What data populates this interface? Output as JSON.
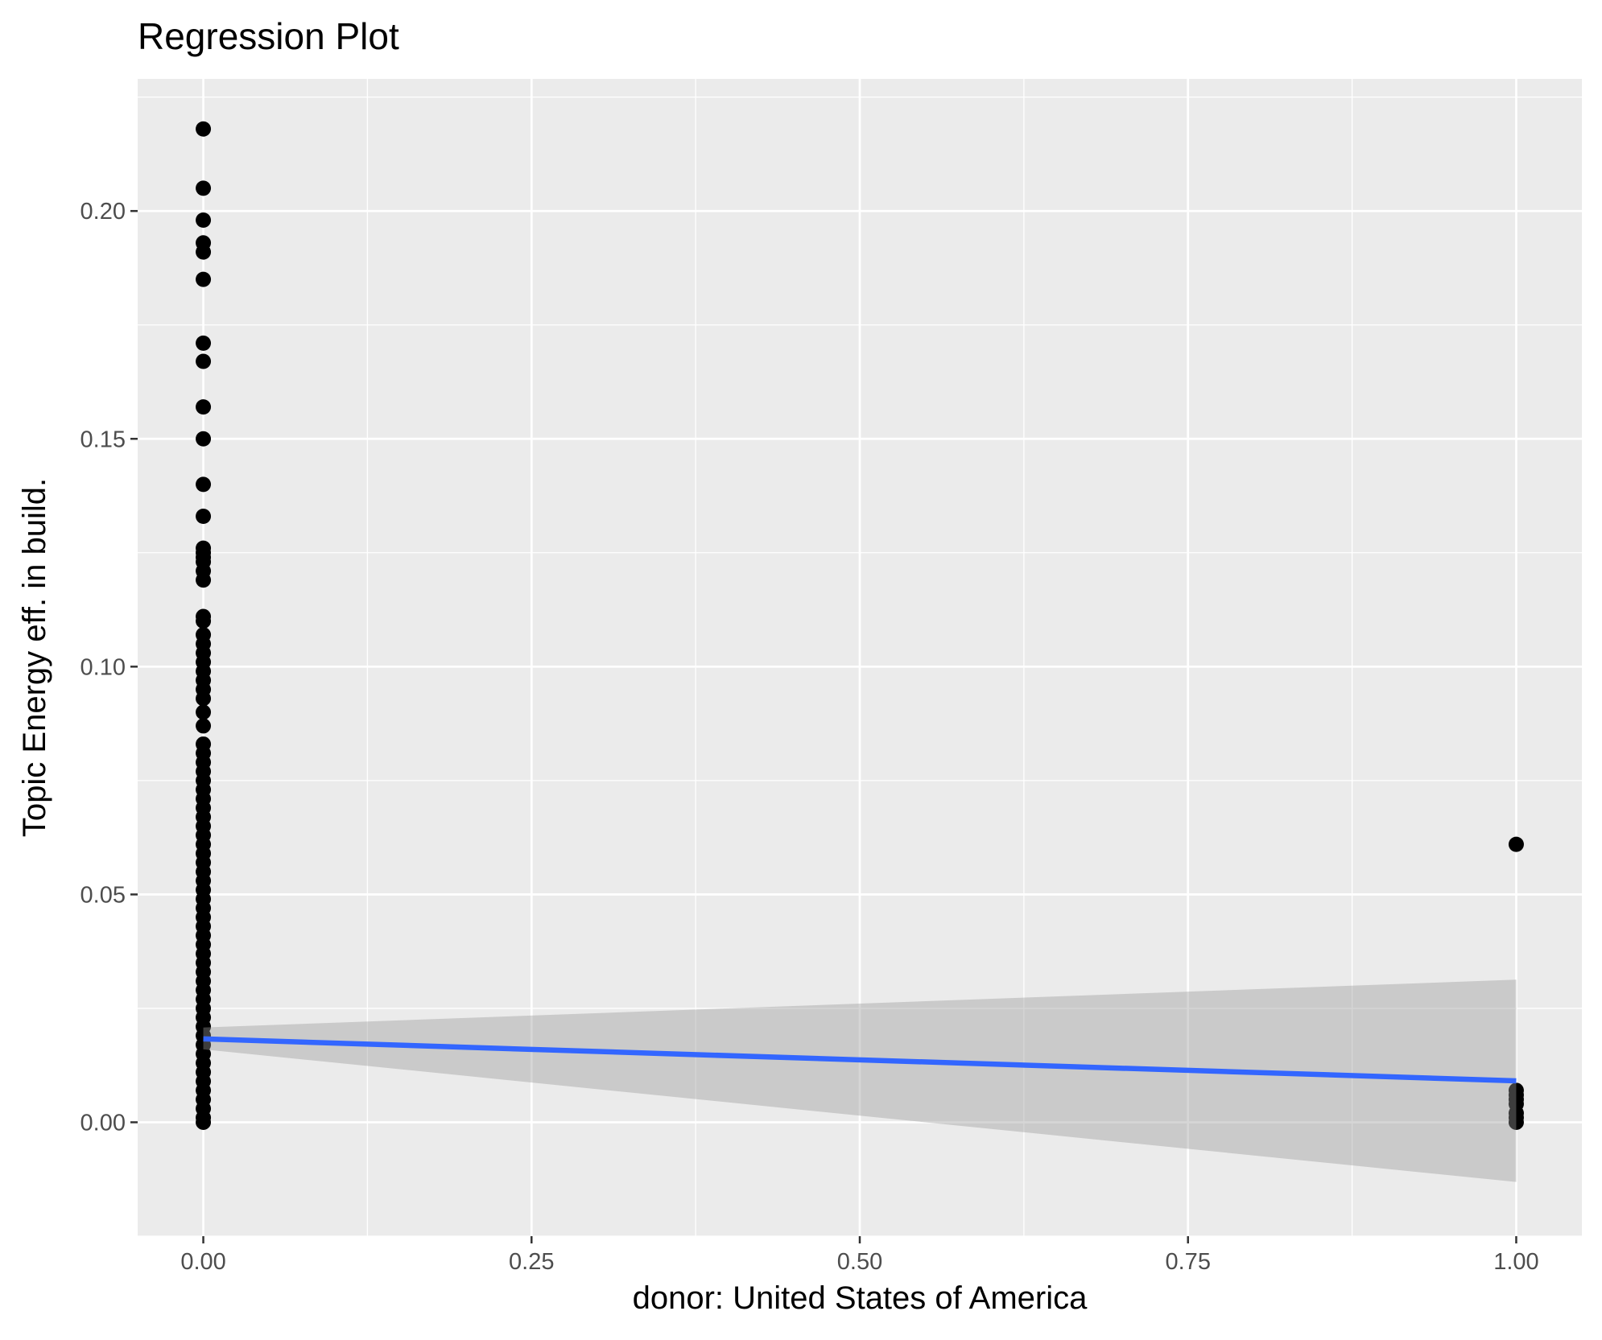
{
  "chart_data": {
    "type": "scatter",
    "title": "Regression Plot",
    "xlabel": "donor: United States of America",
    "ylabel": "Topic Energy eff. in build.",
    "xlim": [
      -0.05,
      1.05
    ],
    "ylim": [
      -0.025,
      0.229
    ],
    "x_ticks": [
      0.0,
      0.25,
      0.5,
      0.75,
      1.0
    ],
    "x_tick_labels": [
      "0.00",
      "0.25",
      "0.50",
      "0.75",
      "1.00"
    ],
    "y_ticks": [
      0.0,
      0.05,
      0.1,
      0.15,
      0.2
    ],
    "y_tick_labels": [
      "0.00",
      "0.05",
      "0.10",
      "0.15",
      "0.20"
    ],
    "grid": true,
    "legend": "none",
    "colors": {
      "panel_background": "#ebebeb",
      "grid": "#ffffff",
      "points": "#000000",
      "fit_line": "#3366ff",
      "confidence_band": "#c6c6c6"
    },
    "points": [
      {
        "x": 0,
        "y": 0.218
      },
      {
        "x": 0,
        "y": 0.205
      },
      {
        "x": 0,
        "y": 0.198
      },
      {
        "x": 0,
        "y": 0.193
      },
      {
        "x": 0,
        "y": 0.191
      },
      {
        "x": 0,
        "y": 0.185
      },
      {
        "x": 0,
        "y": 0.171
      },
      {
        "x": 0,
        "y": 0.167
      },
      {
        "x": 0,
        "y": 0.157
      },
      {
        "x": 0,
        "y": 0.15
      },
      {
        "x": 0,
        "y": 0.14
      },
      {
        "x": 0,
        "y": 0.133
      },
      {
        "x": 0,
        "y": 0.126
      },
      {
        "x": 0,
        "y": 0.125
      },
      {
        "x": 0,
        "y": 0.124
      },
      {
        "x": 0,
        "y": 0.123
      },
      {
        "x": 0,
        "y": 0.121
      },
      {
        "x": 0,
        "y": 0.119
      },
      {
        "x": 0,
        "y": 0.111
      },
      {
        "x": 0,
        "y": 0.11
      },
      {
        "x": 0,
        "y": 0.107
      },
      {
        "x": 0,
        "y": 0.105
      },
      {
        "x": 0,
        "y": 0.103
      },
      {
        "x": 0,
        "y": 0.101
      },
      {
        "x": 0,
        "y": 0.099
      },
      {
        "x": 0,
        "y": 0.097
      },
      {
        "x": 0,
        "y": 0.095
      },
      {
        "x": 0,
        "y": 0.093
      },
      {
        "x": 0,
        "y": 0.09
      },
      {
        "x": 0,
        "y": 0.087
      },
      {
        "x": 0,
        "y": 0.083
      },
      {
        "x": 0,
        "y": 0.081
      },
      {
        "x": 0,
        "y": 0.079
      },
      {
        "x": 0,
        "y": 0.077
      },
      {
        "x": 0,
        "y": 0.075
      },
      {
        "x": 0,
        "y": 0.073
      },
      {
        "x": 0,
        "y": 0.071
      },
      {
        "x": 0,
        "y": 0.069
      },
      {
        "x": 0,
        "y": 0.067
      },
      {
        "x": 0,
        "y": 0.065
      },
      {
        "x": 0,
        "y": 0.063
      },
      {
        "x": 0,
        "y": 0.061
      },
      {
        "x": 0,
        "y": 0.059
      },
      {
        "x": 0,
        "y": 0.057
      },
      {
        "x": 0,
        "y": 0.055
      },
      {
        "x": 0,
        "y": 0.053
      },
      {
        "x": 0,
        "y": 0.051
      },
      {
        "x": 0,
        "y": 0.049
      },
      {
        "x": 0,
        "y": 0.047
      },
      {
        "x": 0,
        "y": 0.045
      },
      {
        "x": 0,
        "y": 0.043
      },
      {
        "x": 0,
        "y": 0.041
      },
      {
        "x": 0,
        "y": 0.039
      },
      {
        "x": 0,
        "y": 0.037
      },
      {
        "x": 0,
        "y": 0.035
      },
      {
        "x": 0,
        "y": 0.033
      },
      {
        "x": 0,
        "y": 0.031
      },
      {
        "x": 0,
        "y": 0.029
      },
      {
        "x": 0,
        "y": 0.027
      },
      {
        "x": 0,
        "y": 0.025
      },
      {
        "x": 0,
        "y": 0.023
      },
      {
        "x": 0,
        "y": 0.021
      },
      {
        "x": 0,
        "y": 0.019
      },
      {
        "x": 0,
        "y": 0.017
      },
      {
        "x": 0,
        "y": 0.015
      },
      {
        "x": 0,
        "y": 0.013
      },
      {
        "x": 0,
        "y": 0.011
      },
      {
        "x": 0,
        "y": 0.009
      },
      {
        "x": 0,
        "y": 0.007
      },
      {
        "x": 0,
        "y": 0.005
      },
      {
        "x": 0,
        "y": 0.003
      },
      {
        "x": 0,
        "y": 0.001
      },
      {
        "x": 0,
        "y": 0.0
      },
      {
        "x": 1,
        "y": 0.061
      },
      {
        "x": 1,
        "y": 0.007
      },
      {
        "x": 1,
        "y": 0.006
      },
      {
        "x": 1,
        "y": 0.005
      },
      {
        "x": 1,
        "y": 0.004
      },
      {
        "x": 1,
        "y": 0.002
      },
      {
        "x": 1,
        "y": 0.001
      },
      {
        "x": 1,
        "y": 0.0
      }
    ],
    "regression_line": {
      "x": [
        0,
        1
      ],
      "y": [
        0.0183,
        0.0091
      ]
    },
    "confidence_band": {
      "x": [
        0,
        1
      ],
      "upper": [
        0.0208,
        0.0313
      ],
      "lower": [
        0.016,
        -0.0131
      ]
    }
  }
}
